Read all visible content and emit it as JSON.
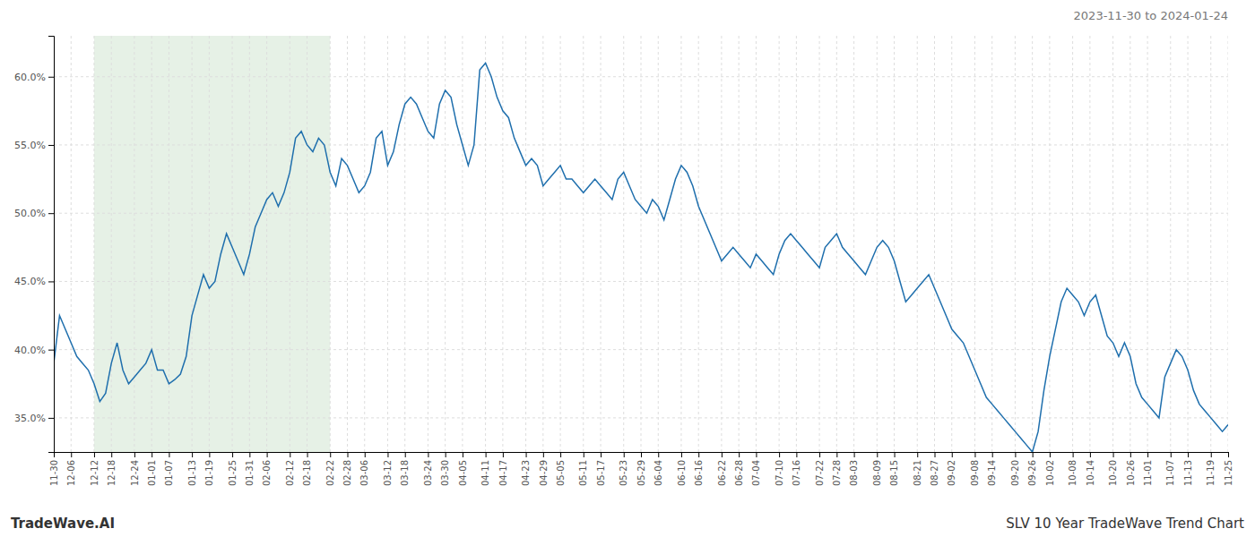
{
  "chart_data": {
    "type": "line",
    "title": "2023-11-30 to 2024-01-24",
    "annotations": [
      "TradeWave.AI",
      "SLV 10 Year TradeWave Trend Chart"
    ],
    "color": "#1f6fad",
    "grid": true,
    "highlight": {
      "start": "12-12",
      "end": "02-22",
      "color": "#c8dfc8"
    },
    "ylim": [
      32.5,
      63
    ],
    "yticks": [
      {
        "value": 35.0,
        "label": "35.0%"
      },
      {
        "value": 40.0,
        "label": "40.0%"
      },
      {
        "value": 45.0,
        "label": "45.0%"
      },
      {
        "value": 50.0,
        "label": "50.0%"
      },
      {
        "value": 55.0,
        "label": "55.0%"
      },
      {
        "value": 60.0,
        "label": "60.0%"
      }
    ],
    "categories": [
      "11-30",
      null,
      null,
      "12-06",
      null,
      null,
      null,
      "12-12",
      null,
      null,
      "12-18",
      null,
      null,
      null,
      "12-24",
      null,
      null,
      "01-01",
      null,
      null,
      "01-07",
      null,
      null,
      null,
      "01-13",
      null,
      null,
      "01-19",
      null,
      null,
      null,
      "01-25",
      null,
      null,
      "01-31",
      null,
      null,
      "02-06",
      null,
      null,
      null,
      "02-12",
      null,
      null,
      "02-18",
      null,
      null,
      null,
      "02-22",
      null,
      null,
      "02-28",
      null,
      null,
      "03-06",
      null,
      null,
      null,
      "03-12",
      null,
      null,
      "03-18",
      null,
      null,
      null,
      "03-24",
      null,
      null,
      "03-30",
      null,
      null,
      "04-05",
      null,
      null,
      null,
      "04-11",
      null,
      null,
      "04-17",
      null,
      null,
      null,
      "04-23",
      null,
      null,
      "04-29",
      null,
      null,
      "05-05",
      null,
      null,
      null,
      "05-11",
      null,
      null,
      "05-17",
      null,
      null,
      null,
      "05-23",
      null,
      null,
      "05-29",
      null,
      null,
      "06-04",
      null,
      null,
      null,
      "06-10",
      null,
      null,
      "06-16",
      null,
      null,
      null,
      "06-22",
      null,
      null,
      "06-28",
      null,
      null,
      "07-04",
      null,
      null,
      null,
      "07-10",
      null,
      null,
      "07-16",
      null,
      null,
      null,
      "07-22",
      null,
      null,
      "07-28",
      null,
      null,
      "08-03",
      null,
      null,
      null,
      "08-09",
      null,
      null,
      "08-15",
      null,
      null,
      null,
      "08-21",
      null,
      null,
      "08-27",
      null,
      null,
      "09-02",
      null,
      null,
      null,
      "09-08",
      null,
      null,
      "09-14",
      null,
      null,
      null,
      "09-20",
      null,
      null,
      "09-26",
      null,
      null,
      "10-02",
      null,
      null,
      null,
      "10-08",
      null,
      null,
      "10-14",
      null,
      null,
      null,
      "10-20",
      null,
      null,
      "10-26",
      null,
      null,
      "11-01",
      null,
      null,
      null,
      "11-07",
      null,
      null,
      "11-13",
      null,
      null,
      null,
      "11-19",
      null,
      null,
      "11-25"
    ],
    "values": [
      39.0,
      42.5,
      41.5,
      40.5,
      39.5,
      39.0,
      38.5,
      37.5,
      36.2,
      36.8,
      39.0,
      40.5,
      38.5,
      37.5,
      38.0,
      38.5,
      39.0,
      40.0,
      38.5,
      38.5,
      37.5,
      37.8,
      38.2,
      39.5,
      42.5,
      44.0,
      45.5,
      44.5,
      45.0,
      47.0,
      48.5,
      47.5,
      46.5,
      45.5,
      47.0,
      49.0,
      50.0,
      51.0,
      51.5,
      50.5,
      51.5,
      53.0,
      55.5,
      56.0,
      55.0,
      54.5,
      55.5,
      55.0,
      53.0,
      52.0,
      54.0,
      53.5,
      52.5,
      51.5,
      52.0,
      53.0,
      55.5,
      56.0,
      53.5,
      54.5,
      56.5,
      58.0,
      58.5,
      58.0,
      57.0,
      56.0,
      55.5,
      58.0,
      59.0,
      58.5,
      56.5,
      55.0,
      53.5,
      55.0,
      60.5,
      61.0,
      60.0,
      58.5,
      57.5,
      57.0,
      55.5,
      54.5,
      53.5,
      54.0,
      53.5,
      52.0,
      52.5,
      53.0,
      53.5,
      52.5,
      52.5,
      52.0,
      51.5,
      52.0,
      52.5,
      52.0,
      51.5,
      51.0,
      52.5,
      53.0,
      52.0,
      51.0,
      50.5,
      50.0,
      51.0,
      50.5,
      49.5,
      51.0,
      52.5,
      53.5,
      53.0,
      52.0,
      50.5,
      49.5,
      48.5,
      47.5,
      46.5,
      47.0,
      47.5,
      47.0,
      46.5,
      46.0,
      47.0,
      46.5,
      46.0,
      45.5,
      47.0,
      48.0,
      48.5,
      48.0,
      47.5,
      47.0,
      46.5,
      46.0,
      47.5,
      48.0,
      48.5,
      47.5,
      47.0,
      46.5,
      46.0,
      45.5,
      46.5,
      47.5,
      48.0,
      47.5,
      46.5,
      45.0,
      43.5,
      44.0,
      44.5,
      45.0,
      45.5,
      44.5,
      43.5,
      42.5,
      41.5,
      41.0,
      40.5,
      39.5,
      38.5,
      37.5,
      36.5,
      36.0,
      35.5,
      35.0,
      34.5,
      34.0,
      33.5,
      33.0,
      32.5,
      34.0,
      37.0,
      39.5,
      41.5,
      43.5,
      44.5,
      44.0,
      43.5,
      42.5,
      43.5,
      44.0,
      42.5,
      41.0,
      40.5,
      39.5,
      40.5,
      39.5,
      37.5,
      36.5,
      36.0,
      35.5,
      35.0,
      38.0,
      39.0,
      40.0,
      39.5,
      38.5,
      37.0,
      36.0,
      35.5,
      35.0,
      34.5,
      34.0,
      34.5
    ]
  }
}
